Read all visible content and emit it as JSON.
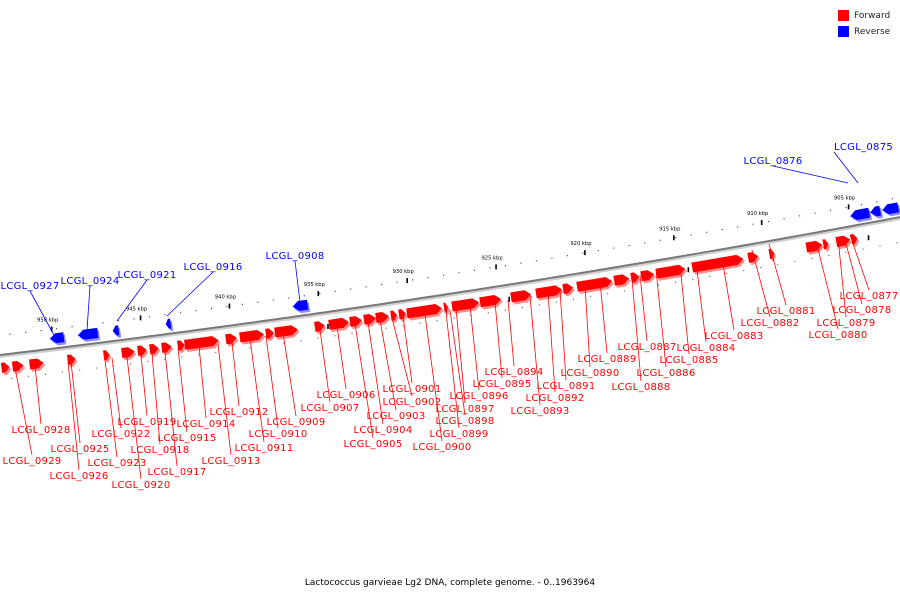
{
  "legend": {
    "forward_label": "Forward",
    "reverse_label": "Reverse",
    "forward_color": "#ff0000",
    "reverse_color": "#0000ff"
  },
  "caption": "Lactococcus garvieae Lg2 DNA, complete genome. - 0..1963964",
  "colors": {
    "backbone": "#777777",
    "forward": "#ff0000",
    "reverse": "#0000ff"
  },
  "ticks": [
    "905 kbp",
    "910 kbp",
    "915 kbp",
    "920 kbp",
    "925 kbp",
    "930 kbp",
    "935 kbp",
    "940 kbp",
    "945 kbp",
    "950 kbp"
  ],
  "reverse_genes": [
    "LCGL_0875",
    "LCGL_0876",
    "LCGL_0908",
    "LCGL_0916",
    "LCGL_0921",
    "LCGL_0924",
    "LCGL_0927"
  ],
  "forward_genes": [
    "LCGL_0877",
    "LCGL_0878",
    "LCGL_0879",
    "LCGL_0880",
    "LCGL_0881",
    "LCGL_0882",
    "LCGL_0883",
    "LCGL_0884",
    "LCGL_0885",
    "LCGL_0886",
    "LCGL_0887",
    "LCGL_0888",
    "LCGL_0889",
    "LCGL_0890",
    "LCGL_0891",
    "LCGL_0892",
    "LCGL_0893",
    "LCGL_0894",
    "LCGL_0895",
    "LCGL_0896",
    "LCGL_0897",
    "LCGL_0898",
    "LCGL_0899",
    "LCGL_0900",
    "LCGL_0901",
    "LCGL_0902",
    "LCGL_0903",
    "LCGL_0904",
    "LCGL_0905",
    "LCGL_0906",
    "LCGL_0907",
    "LCGL_0909",
    "LCGL_0910",
    "LCGL_0911",
    "LCGL_0912",
    "LCGL_0913",
    "LCGL_0914",
    "LCGL_0915",
    "LCGL_0917",
    "LCGL_0918",
    "LCGL_0919",
    "LCGL_0920",
    "LCGL_0922",
    "LCGL_0923",
    "LCGL_0925",
    "LCGL_0926",
    "LCGL_0928",
    "LCGL_0929"
  ]
}
